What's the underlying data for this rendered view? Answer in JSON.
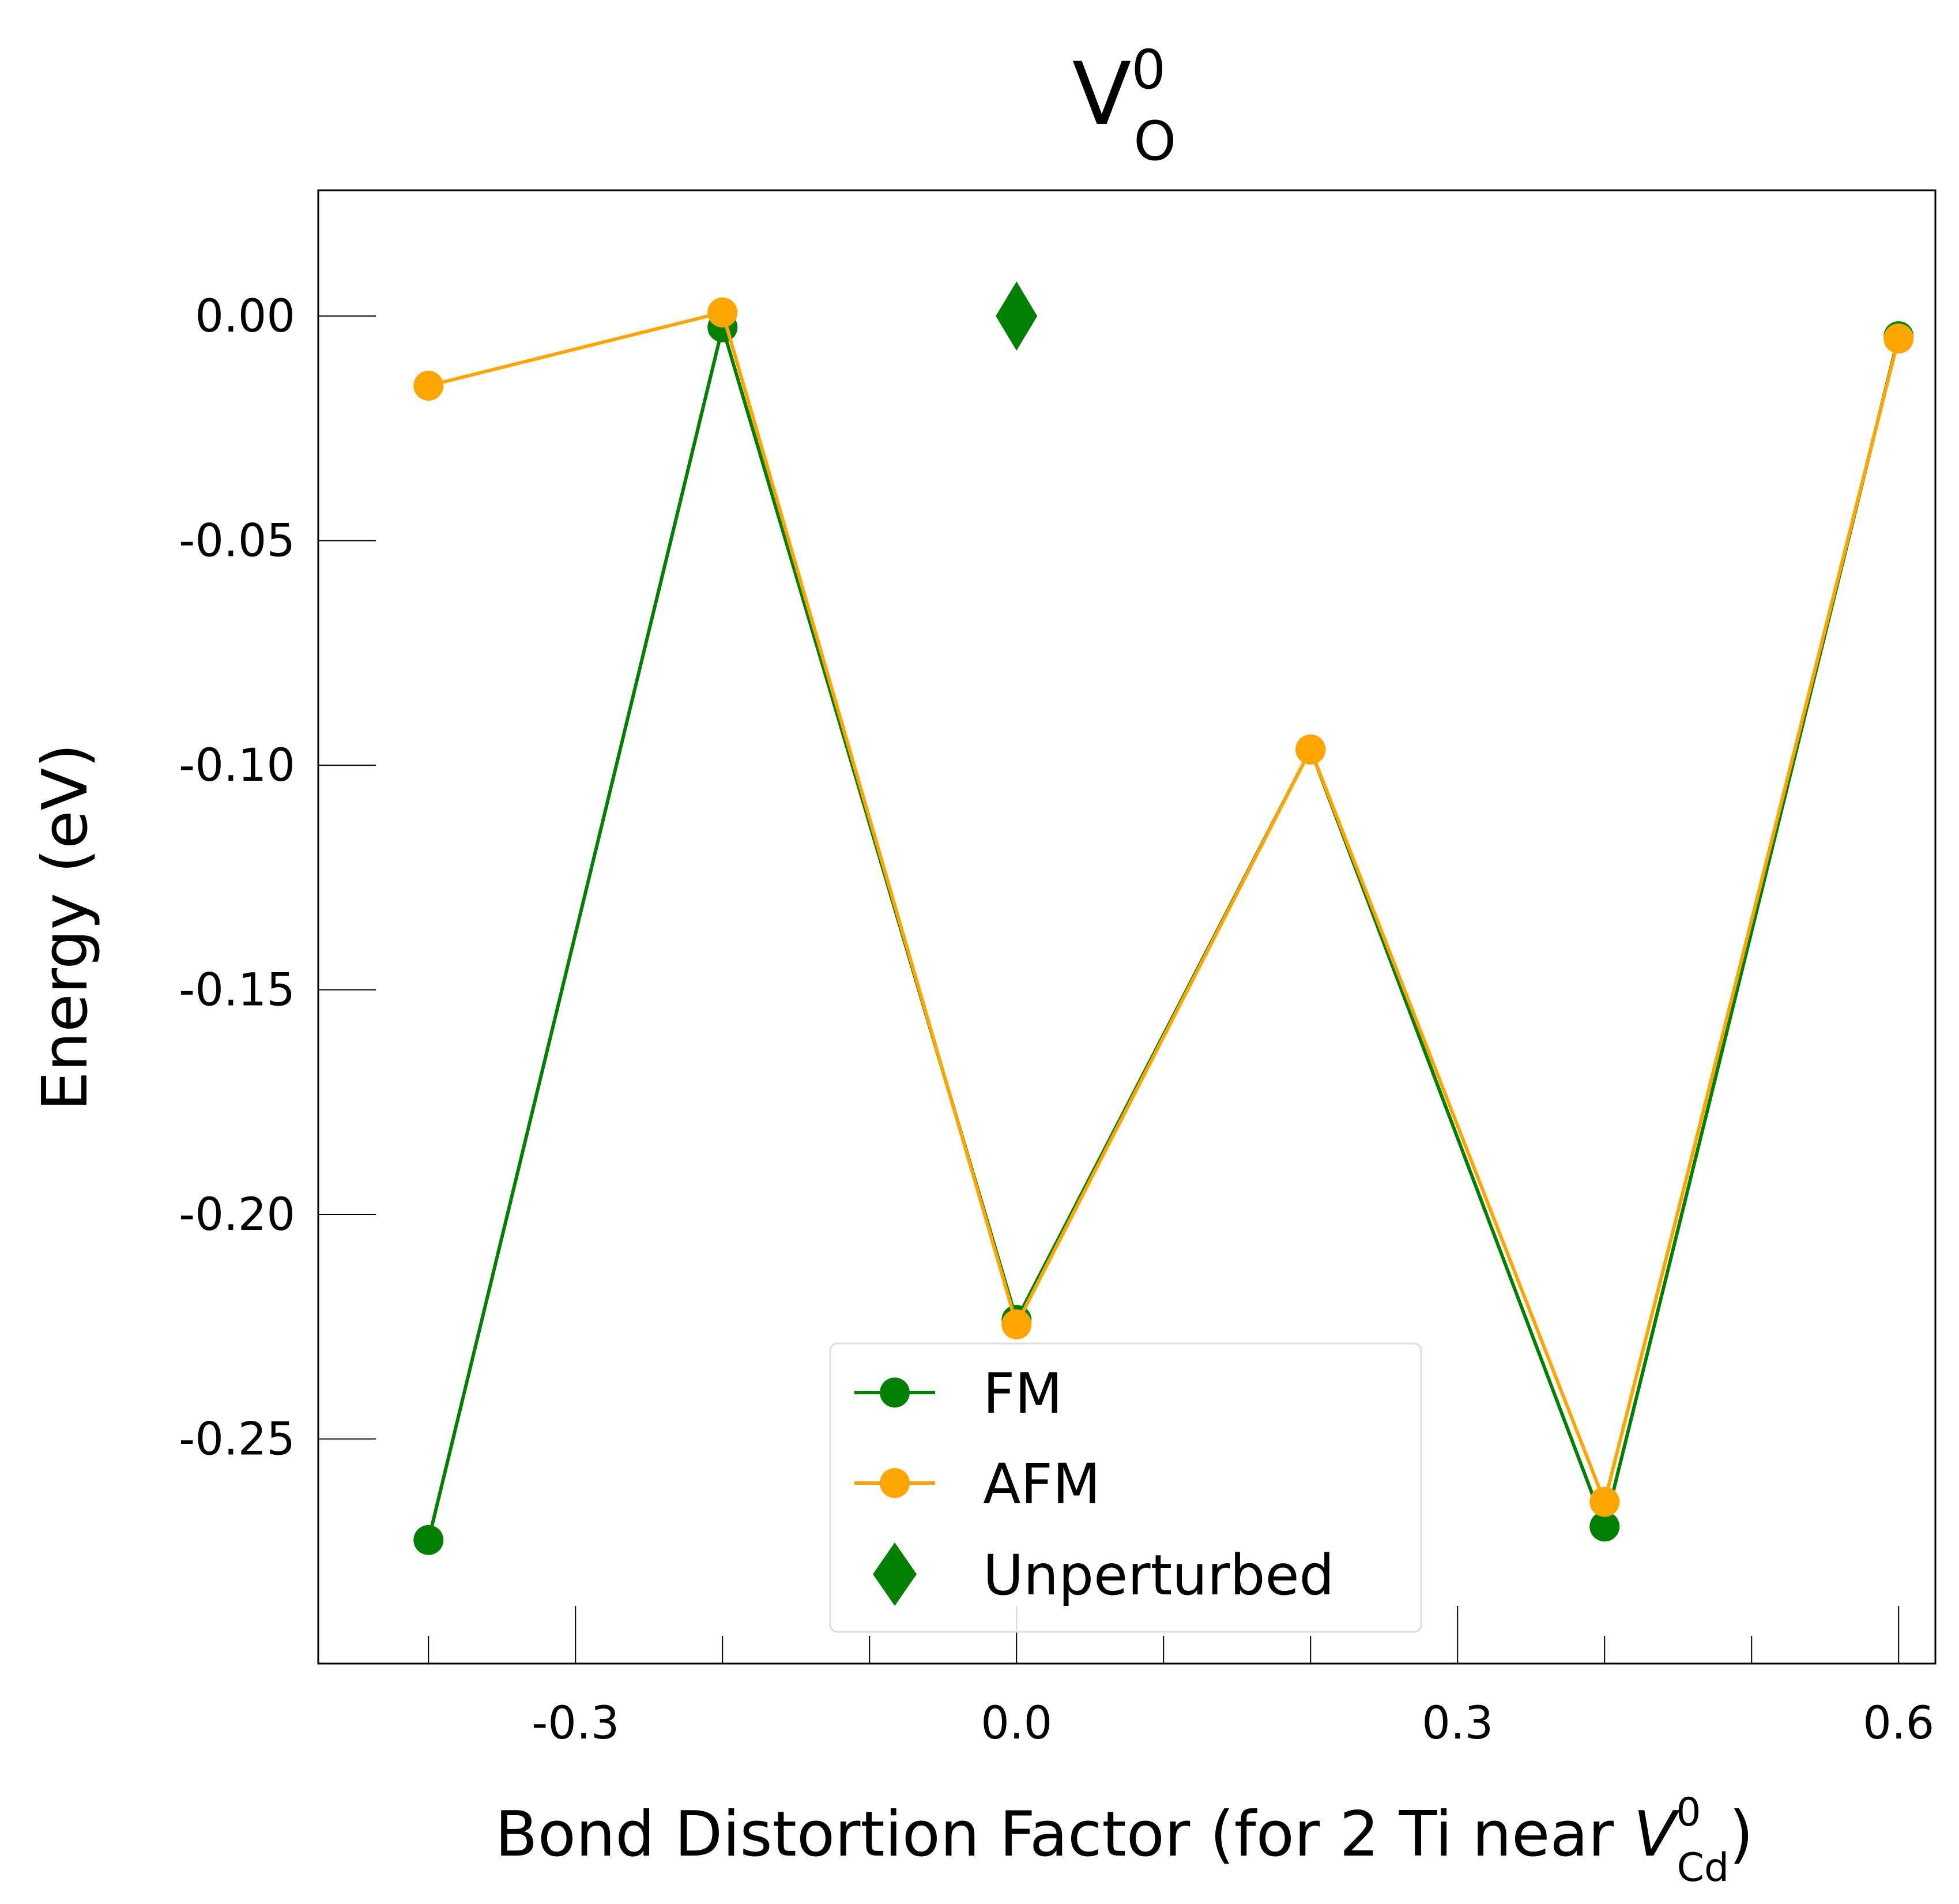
{
  "chart_data": {
    "type": "line",
    "title": {
      "base": "V",
      "superscript": "0",
      "subscript": "O"
    },
    "xlabel": {
      "prefix": "Bond Distortion Factor (for 2 Ti near ",
      "symbol": "V",
      "superscript": "0",
      "subscript": "Cd",
      "suffix": ")"
    },
    "ylabel": "Energy (eV)",
    "xlim": [
      -0.475,
      0.625
    ],
    "ylim": [
      -0.3,
      0.028
    ],
    "xticks": [
      -0.3,
      0.0,
      0.3,
      0.6
    ],
    "xtick_labels": [
      "-0.3",
      "0.0",
      "0.3",
      "0.6"
    ],
    "x_minor_ticks": [
      -0.4,
      -0.2,
      -0.1,
      0.1,
      0.2,
      0.4,
      0.5
    ],
    "yticks": [
      0.0,
      -0.05,
      -0.1,
      -0.15,
      -0.2,
      -0.25
    ],
    "ytick_labels": [
      "0.00",
      "-0.05",
      "-0.10",
      "-0.15",
      "-0.20",
      "-0.25"
    ],
    "grid": false,
    "legend_position": "bottom-center",
    "series": [
      {
        "name": "FM",
        "color": "#008000",
        "marker": "circle",
        "x": [
          -0.4,
          -0.2,
          0.0,
          0.2,
          0.4,
          0.6
        ],
        "y": [
          -0.2725,
          -0.0025,
          -0.2235,
          -0.0965,
          -0.2695,
          -0.0045
        ]
      },
      {
        "name": "AFM",
        "color": "#FFA500",
        "marker": "circle",
        "x": [
          -0.4,
          -0.2,
          0.0,
          0.2,
          0.4,
          0.6
        ],
        "y": [
          -0.0155,
          0.0008,
          -0.2245,
          -0.0965,
          -0.264,
          -0.005
        ]
      },
      {
        "name": "Unperturbed",
        "color": "#008000",
        "marker": "diamond",
        "x": [
          0.0
        ],
        "y": [
          0.0
        ]
      }
    ]
  }
}
